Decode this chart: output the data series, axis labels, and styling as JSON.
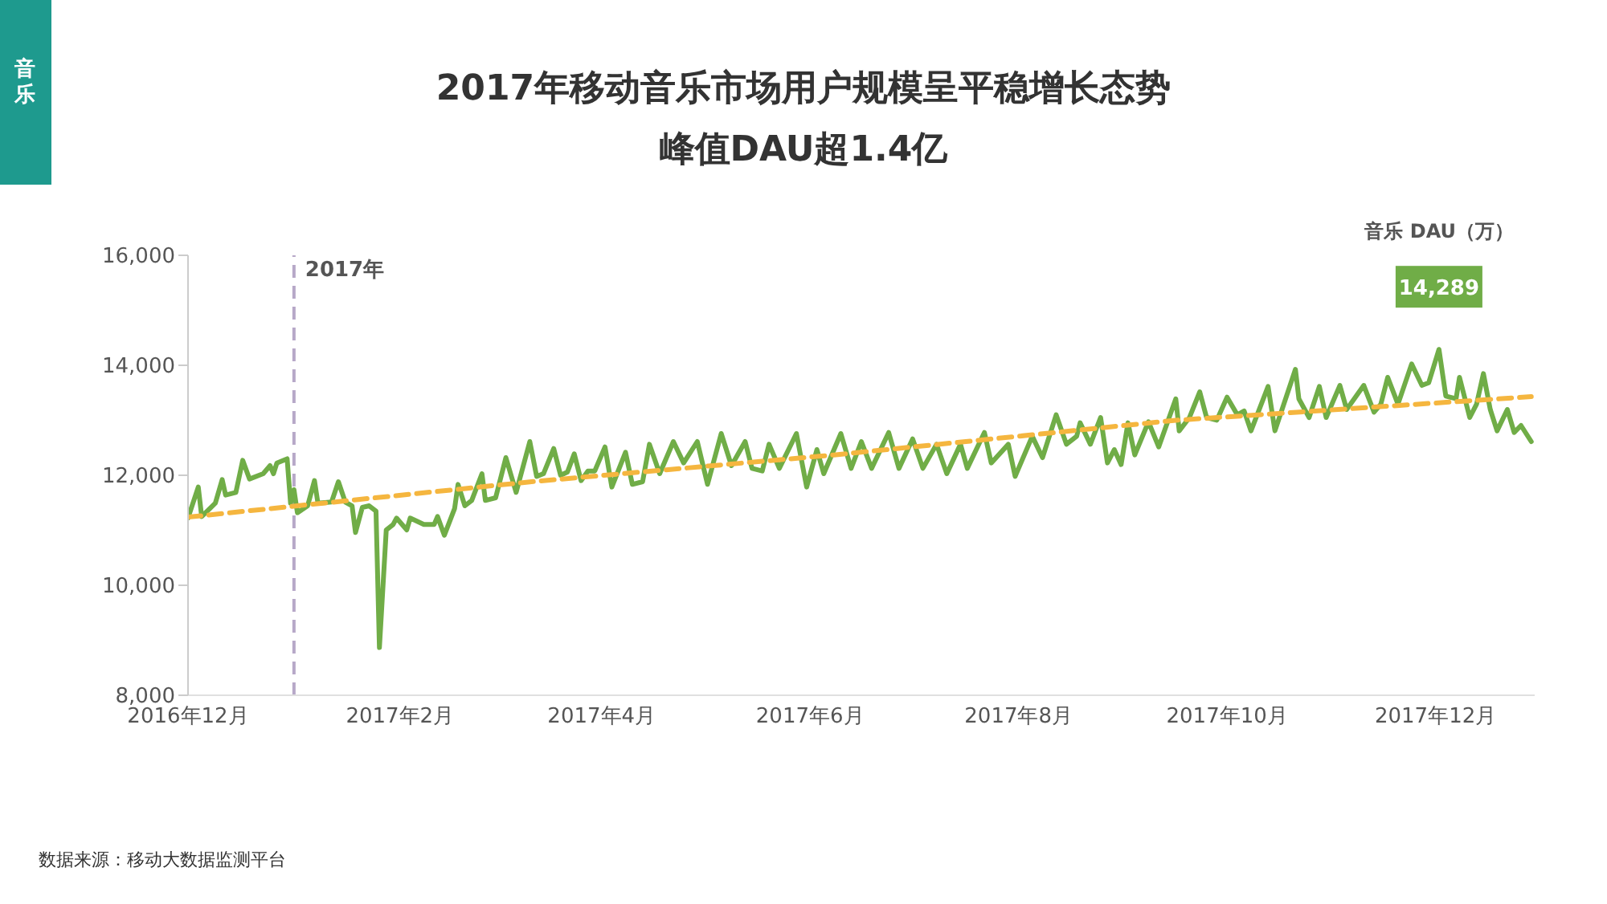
{
  "chart_data": {
    "type": "line",
    "title": "2017年移动音乐市场用户规模呈平稳增长态势",
    "subtitle": "峰值DAU超1.4亿",
    "ylabel": "音乐 DAU（万）",
    "annotations": [
      "音乐",
      {
        "text": "14,289",
        "x": "2017-12-02",
        "y": 14289
      },
      "数据来源：移动大数据监测平台"
    ],
    "xlim": [
      "2016-12-01",
      "2017-12-30"
    ],
    "xticks": [
      {
        "value": "2016-12-01",
        "label": "2016年12月"
      },
      {
        "value": "2017-02-01",
        "label": "2017年2月"
      },
      {
        "value": "2017-04-01",
        "label": "2017年4月"
      },
      {
        "value": "2017-06-01",
        "label": "2017年6月"
      },
      {
        "value": "2017-08-01",
        "label": "2017年8月"
      },
      {
        "value": "2017-10-01",
        "label": "2017年10月"
      },
      {
        "value": "2017-12-01",
        "label": "2017年12月"
      }
    ],
    "ylim": [
      8000,
      16000
    ],
    "yticks": [
      {
        "value": 8000,
        "label": "8,000"
      },
      {
        "value": 10000,
        "label": "10,000"
      },
      {
        "value": 12000,
        "label": "12,000"
      },
      {
        "value": 14000,
        "label": "14,000"
      },
      {
        "value": 16000,
        "label": "16,000"
      }
    ],
    "ref_lines": [
      {
        "axis": "x",
        "value": "2017-01-01",
        "label": "2017年",
        "color": "#b7a8c8",
        "line_style": "dashed"
      }
    ],
    "marker": "none",
    "series": [
      {
        "color": "#70ad47",
        "line_style": "solid",
        "x": [
          "2016-12-01",
          "2016-12-04",
          "2016-12-05",
          "2016-12-09",
          "2016-12-11",
          "2016-12-12",
          "2016-12-15",
          "2016-12-17",
          "2016-12-19",
          "2016-12-23",
          "2016-12-25",
          "2016-12-26",
          "2016-12-27",
          "2016-12-30",
          "2016-12-31",
          "2017-01-01",
          "2017-01-02",
          "2017-01-05",
          "2017-01-07",
          "2017-01-08",
          "2017-01-12",
          "2017-01-14",
          "2017-01-16",
          "2017-01-18",
          "2017-01-19",
          "2017-01-21",
          "2017-01-23",
          "2017-01-25",
          "2017-01-26",
          "2017-01-28",
          "2017-01-30",
          "2017-01-31",
          "2017-02-03",
          "2017-02-04",
          "2017-02-08",
          "2017-02-11",
          "2017-02-12",
          "2017-02-14",
          "2017-02-17",
          "2017-02-18",
          "2017-02-20",
          "2017-02-22",
          "2017-02-25",
          "2017-02-26",
          "2017-03-01",
          "2017-03-04",
          "2017-03-07",
          "2017-03-11",
          "2017-03-13",
          "2017-03-15",
          "2017-03-18",
          "2017-03-20",
          "2017-03-22",
          "2017-03-24",
          "2017-03-26",
          "2017-03-28",
          "2017-03-30",
          "2017-04-02",
          "2017-04-04",
          "2017-04-08",
          "2017-04-10",
          "2017-04-13",
          "2017-04-15",
          "2017-04-18",
          "2017-04-22",
          "2017-04-25",
          "2017-04-29",
          "2017-05-02",
          "2017-05-06",
          "2017-05-09",
          "2017-05-13",
          "2017-05-15",
          "2017-05-18",
          "2017-05-20",
          "2017-05-23",
          "2017-05-28",
          "2017-05-31",
          "2017-06-03",
          "2017-06-05",
          "2017-06-10",
          "2017-06-13",
          "2017-06-16",
          "2017-06-19",
          "2017-06-24",
          "2017-06-27",
          "2017-07-01",
          "2017-07-04",
          "2017-07-08",
          "2017-07-11",
          "2017-07-15",
          "2017-07-17",
          "2017-07-22",
          "2017-07-24",
          "2017-07-29",
          "2017-07-31",
          "2017-08-05",
          "2017-08-08",
          "2017-08-12",
          "2017-08-15",
          "2017-08-18",
          "2017-08-19",
          "2017-08-22",
          "2017-08-25",
          "2017-08-27",
          "2017-08-29",
          "2017-08-31",
          "2017-09-02",
          "2017-09-04",
          "2017-09-08",
          "2017-09-11",
          "2017-09-16",
          "2017-09-17",
          "2017-09-20",
          "2017-09-23",
          "2017-09-25",
          "2017-09-28",
          "2017-10-01",
          "2017-10-04",
          "2017-10-06",
          "2017-10-08",
          "2017-10-13",
          "2017-10-15",
          "2017-10-21",
          "2017-10-22",
          "2017-10-25",
          "2017-10-28",
          "2017-10-30",
          "2017-11-03",
          "2017-11-05",
          "2017-11-10",
          "2017-11-13",
          "2017-11-15",
          "2017-11-17",
          "2017-11-20",
          "2017-11-24",
          "2017-11-27",
          "2017-11-29",
          "2017-12-02",
          "2017-12-04",
          "2017-12-07",
          "2017-12-08",
          "2017-12-11",
          "2017-12-13",
          "2017-12-15",
          "2017-12-17",
          "2017-12-19",
          "2017-12-22",
          "2017-12-24",
          "2017-12-26",
          "2017-12-29"
        ],
        "values": [
          11222,
          11786,
          11250,
          11494,
          11922,
          11640,
          11689,
          12272,
          11932,
          12029,
          12175,
          12029,
          12224,
          12300,
          11494,
          11737,
          11319,
          11445,
          11903,
          11494,
          11514,
          11883,
          11514,
          11445,
          10959,
          11416,
          11445,
          11348,
          8867,
          11007,
          11105,
          11222,
          11007,
          11222,
          11105,
          11105,
          11250,
          10910,
          11397,
          11834,
          11445,
          11543,
          12029,
          11543,
          11591,
          12321,
          11689,
          12613,
          11980,
          12029,
          12486,
          12000,
          12058,
          12389,
          11903,
          12078,
          12078,
          12516,
          11786,
          12418,
          11835,
          11883,
          12564,
          12029,
          12613,
          12224,
          12613,
          11835,
          12759,
          12175,
          12613,
          12126,
          12078,
          12564,
          12126,
          12759,
          11786,
          12467,
          12029,
          12759,
          12126,
          12613,
          12126,
          12778,
          12126,
          12662,
          12126,
          12564,
          12029,
          12564,
          12126,
          12778,
          12224,
          12564,
          11980,
          12710,
          12321,
          13100,
          12564,
          12710,
          12954,
          12564,
          13051,
          12224,
          12467,
          12195,
          12954,
          12370,
          12973,
          12516,
          13391,
          12808,
          13051,
          13518,
          13051,
          13002,
          13421,
          13100,
          13168,
          12808,
          13615,
          12808,
          13927,
          13391,
          13051,
          13615,
          13051,
          13634,
          13197,
          13634,
          13148,
          13294,
          13781,
          13294,
          14024,
          13634,
          13683,
          14289,
          13440,
          13391,
          13781,
          13051,
          13294,
          13849,
          13197,
          12808,
          13197,
          12778,
          12905,
          12613
        ]
      },
      {
        "color": "#f5b63f",
        "line_style": "dashed",
        "x": [
          "2016-12-01",
          "2017-03-11",
          "2017-06-08",
          "2017-09-16",
          "2017-12-29"
        ],
        "values": [
          11240,
          11880,
          12370,
          13000,
          13430
        ]
      }
    ]
  }
}
